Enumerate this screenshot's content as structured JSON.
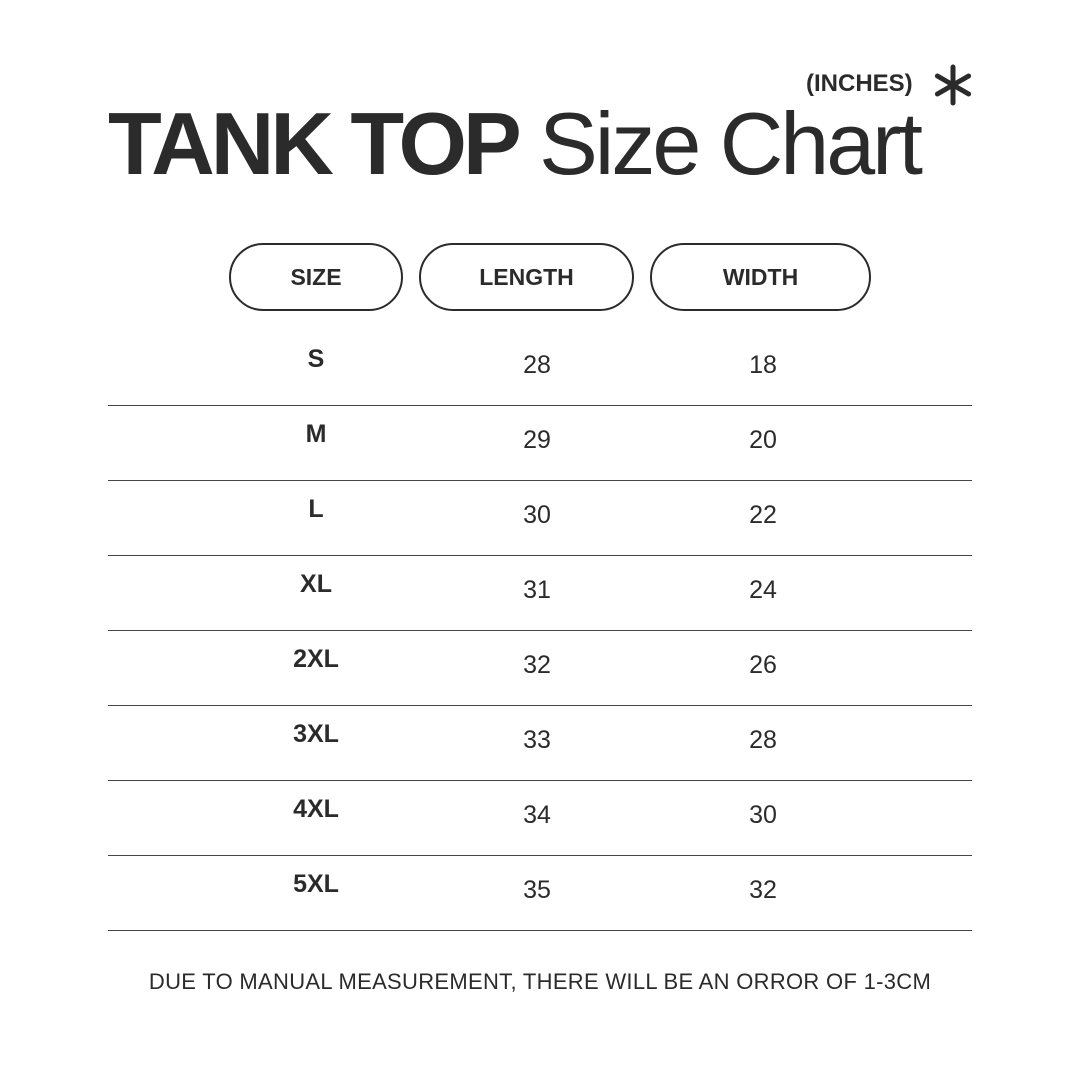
{
  "title": {
    "bold": "TANK TOP",
    "regular": "Size Chart"
  },
  "units": "(INCHES)",
  "units_icon": "asterisk-icon",
  "headers": [
    "SIZE",
    "LENGTH",
    "WIDTH"
  ],
  "rows": [
    [
      "S",
      "28",
      "18"
    ],
    [
      "M",
      "29",
      "20"
    ],
    [
      "L",
      "30",
      "22"
    ],
    [
      "XL",
      "31",
      "24"
    ],
    [
      "2XL",
      "32",
      "26"
    ],
    [
      "3XL",
      "33",
      "28"
    ],
    [
      "4XL",
      "34",
      "30"
    ],
    [
      "5XL",
      "35",
      "32"
    ]
  ],
  "note": "DUE TO MANUAL MEASUREMENT, THERE WILL BE AN ORROR OF 1-3CM"
}
